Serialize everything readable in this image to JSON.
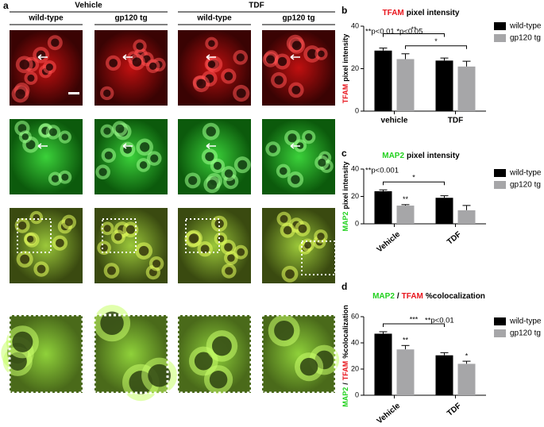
{
  "figure": {
    "panel_label": "a",
    "treatments": [
      "Vehicle",
      "TDF"
    ],
    "genotypes": [
      "wild-type",
      "gp120 tg",
      "wild-type",
      "gp120 tg"
    ]
  },
  "chart_data": [
    {
      "type": "bar",
      "panel_label": "b",
      "title": [
        {
          "text": "TFAM",
          "color": "#e8141c"
        },
        {
          "text": "pixel intensity",
          "color": "#000000"
        }
      ],
      "ylabel": [
        {
          "text": "TFAM",
          "color": "#e8141c"
        },
        {
          "text": "pixel intensity",
          "color": "#000000"
        }
      ],
      "annotation": "**p<0.01 *p<0.05",
      "categories": [
        "vehicle",
        "TDF"
      ],
      "series": [
        {
          "name": "wild-type",
          "color": "#000000",
          "values": [
            28.5,
            23.8
          ],
          "errors": [
            1.2,
            1.2
          ],
          "markers": [
            null,
            null
          ]
        },
        {
          "name": "gp120 tg",
          "color": "#a6a6a8",
          "values": [
            24.5,
            21
          ],
          "errors": [
            2.5,
            2.5
          ],
          "markers": [
            null,
            null
          ]
        }
      ],
      "brackets": [
        {
          "series": 0,
          "label": "**"
        },
        {
          "series": 1,
          "label": "*"
        }
      ],
      "ylim": [
        0,
        40
      ],
      "yticks": [
        0,
        20,
        40
      ]
    },
    {
      "type": "bar",
      "panel_label": "c",
      "title": [
        {
          "text": "MAP2",
          "color": "#22d11e"
        },
        {
          "text": "pixel intensity",
          "color": "#000000"
        }
      ],
      "ylabel": [
        {
          "text": "MAP2",
          "color": "#22d11e"
        },
        {
          "text": "pixel intensity",
          "color": "#000000"
        }
      ],
      "annotation": "**p<0.001",
      "categories": [
        "Vehicle",
        "TDF"
      ],
      "series": [
        {
          "name": "wild-type",
          "color": "#000000",
          "values": [
            23.8,
            19
          ],
          "errors": [
            1,
            1.5
          ],
          "markers": [
            null,
            null
          ]
        },
        {
          "name": "gp120 tg",
          "color": "#a6a6a8",
          "values": [
            13.3,
            9.9
          ],
          "errors": [
            0.7,
            3.5
          ],
          "markers": [
            "**",
            null
          ]
        }
      ],
      "brackets": [
        {
          "series": 0,
          "label": "*"
        }
      ],
      "ylim": [
        0,
        40
      ],
      "yticks": [
        0,
        20,
        40
      ]
    },
    {
      "type": "bar",
      "panel_label": "d",
      "title": [
        {
          "text": "MAP2",
          "color": "#22d11e"
        },
        {
          "text": "/",
          "color": "#000000"
        },
        {
          "text": "TFAM",
          "color": "#e8141c"
        },
        {
          "text": "%colocalization",
          "color": "#000000"
        }
      ],
      "ylabel": [
        {
          "text": "MAP2",
          "color": "#22d11e"
        },
        {
          "text": "/",
          "color": "#000000"
        },
        {
          "text": "TFAM",
          "color": "#e8141c"
        },
        {
          "text": "%colocalization",
          "color": "#000000"
        }
      ],
      "annotation": "**p<0.01",
      "categories": [
        "Vehicle",
        "TDF"
      ],
      "series": [
        {
          "name": "wild-type",
          "color": "#000000",
          "values": [
            47,
            30.5
          ],
          "errors": [
            1.5,
            2
          ],
          "markers": [
            null,
            null
          ]
        },
        {
          "name": "gp120 tg",
          "color": "#a6a6a8",
          "values": [
            35,
            24
          ],
          "errors": [
            3,
            2
          ],
          "markers": [
            "**",
            "*"
          ]
        }
      ],
      "brackets": [
        {
          "series": 0,
          "label": "***"
        }
      ],
      "ylim": [
        0,
        60
      ],
      "yticks": [
        0,
        20,
        40,
        60
      ]
    }
  ]
}
